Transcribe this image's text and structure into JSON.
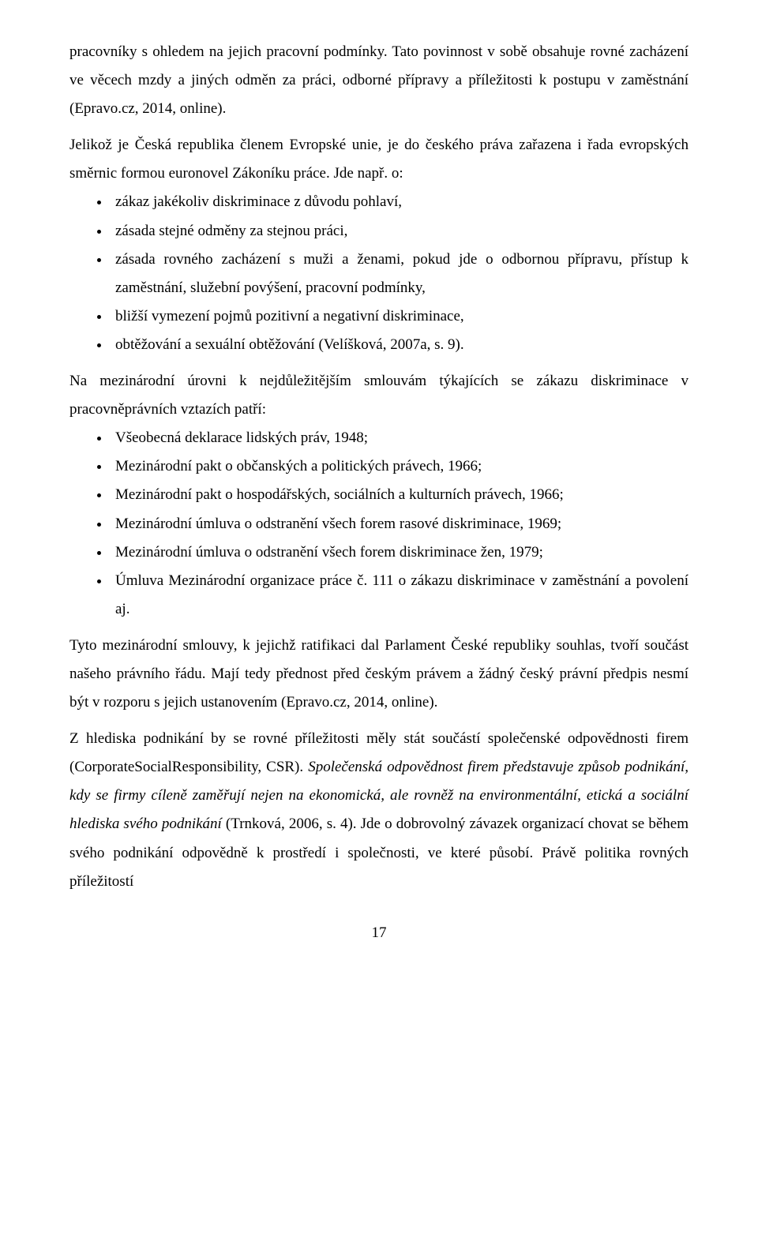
{
  "p1": "pracovníky s ohledem na jejich pracovní podmínky. Tato povinnost v sobě obsahuje rovné zacházení ve věcech mzdy a jiných odměn za práci, odborné přípravy a příležitosti k postupu v zaměstnání (Epravo.cz, 2014, online).",
  "p2": "Jelikož je Česká republika členem Evropské unie, je do českého práva zařazena i řada evropských směrnic formou euronovel Zákoníku práce. Jde např. o:",
  "list1": {
    "i0": "zákaz jakékoliv diskriminace z důvodu pohlaví,",
    "i1": "zásada stejné odměny za stejnou práci,",
    "i2": "zásada rovného zacházení s muži a ženami, pokud jde o odbornou přípravu, přístup k zaměstnání, služební povýšení, pracovní podmínky,",
    "i3": "bližší vymezení pojmů pozitivní a negativní diskriminace,",
    "i4": "obtěžování a sexuální obtěžování (Velíšková, 2007a, s. 9)."
  },
  "p3": "Na mezinárodní úrovni k nejdůležitějším smlouvám týkajících se zákazu diskriminace v pracovněprávních vztazích patří:",
  "list2": {
    "i0": "Všeobecná deklarace lidských práv, 1948;",
    "i1": "Mezinárodní pakt o občanských a politických právech, 1966;",
    "i2": "Mezinárodní pakt o hospodářských, sociálních a kulturních právech, 1966;",
    "i3": "Mezinárodní úmluva o odstranění všech forem rasové diskriminace, 1969;",
    "i4": "Mezinárodní úmluva o odstranění všech forem diskriminace žen, 1979;",
    "i5": "Úmluva Mezinárodní organizace práce č. 111 o zákazu diskriminace v zaměstnání a povolení aj."
  },
  "p4": "Tyto mezinárodní smlouvy, k jejichž ratifikaci dal Parlament České republiky souhlas, tvoří součást našeho právního řádu. Mají tedy přednost před českým právem a žádný český právní předpis nesmí být v rozporu s jejich ustanovením (Epravo.cz, 2014, online).",
  "p5a": "Z hlediska podnikání by se rovné příležitosti měly stát součástí společenské odpovědnosti firem (CorporateSocialResponsibility, CSR). ",
  "p5b": "Společenská odpovědnost firem představuje způsob podnikání, kdy se firmy cíleně zaměřují nejen na ekonomická, ale rovněž na environmentální, etická a sociální hlediska svého podnikání",
  "p5c": " (Trnková, 2006, s. 4). Jde o dobrovolný závazek organizací chovat se během svého podnikání odpovědně k prostředí i společnosti, ve které působí. Právě politika rovných příležitostí",
  "pageNumber": "17"
}
